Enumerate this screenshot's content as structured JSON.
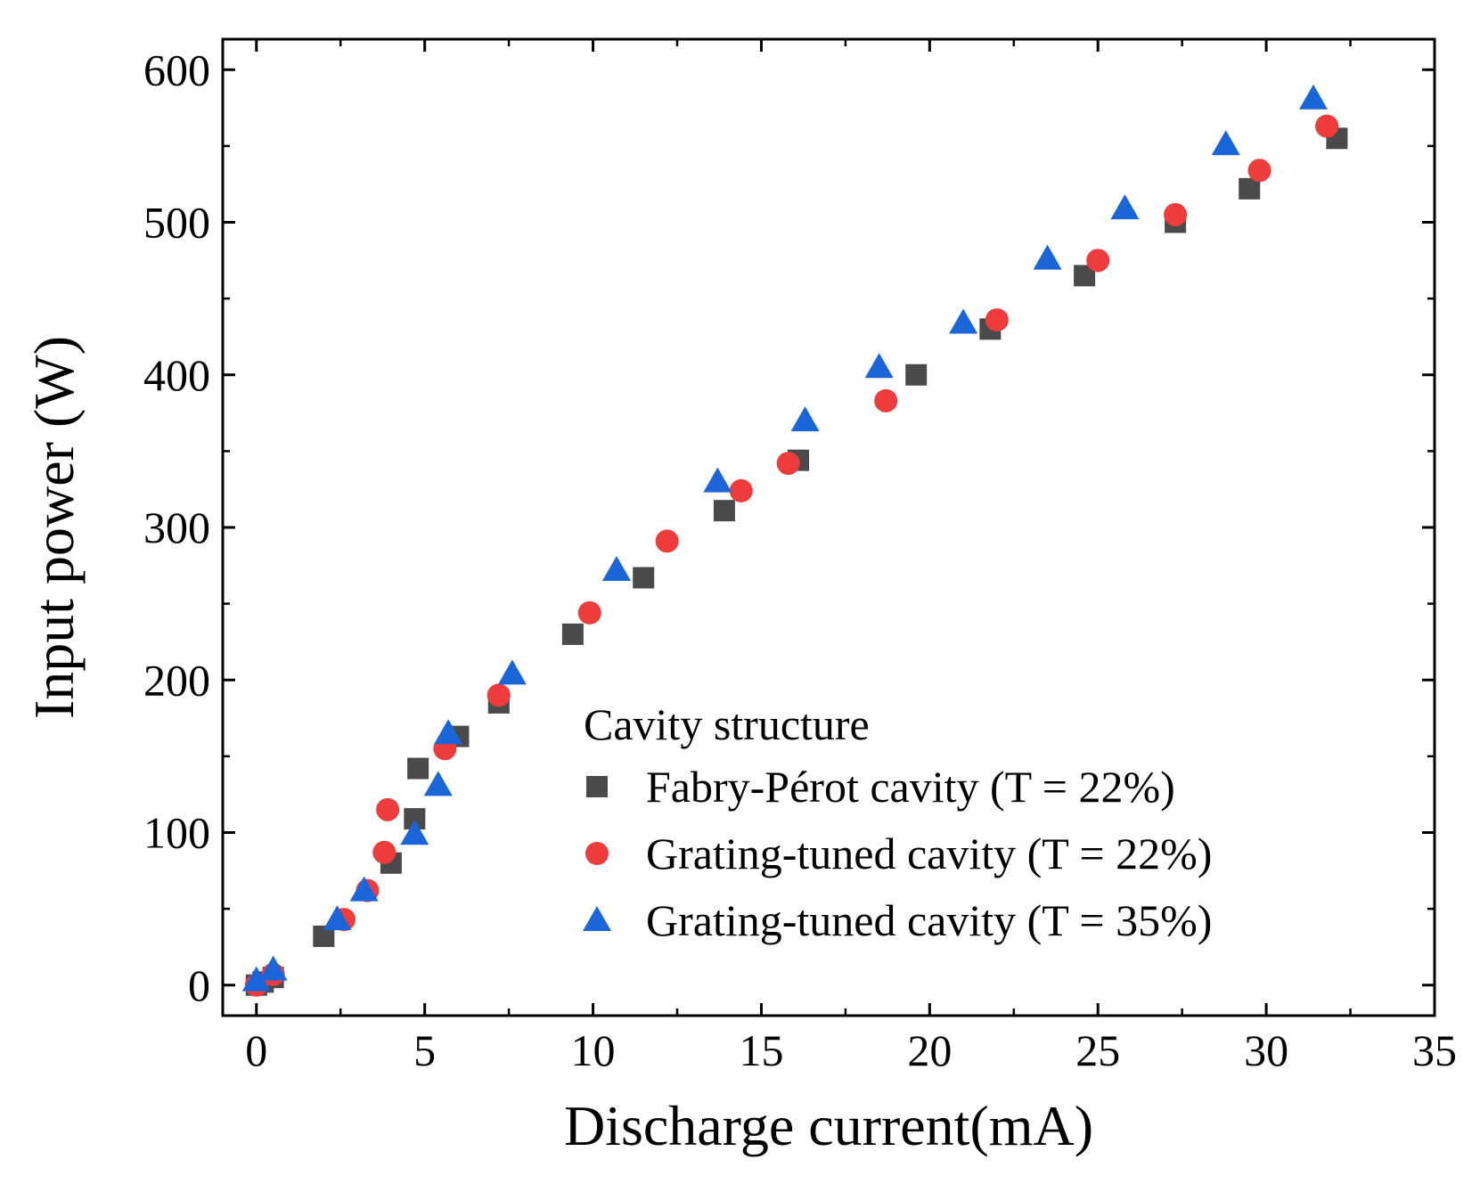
{
  "chart_data": {
    "type": "scatter",
    "xlabel": "Discharge current(mA)",
    "ylabel": "Input power (W)",
    "xlim": [
      -1,
      35
    ],
    "ylim": [
      -20,
      620
    ],
    "xticks": [
      0,
      5,
      10,
      15,
      20,
      25,
      30,
      35
    ],
    "yticks": [
      0,
      100,
      200,
      300,
      400,
      500,
      600
    ],
    "grid": false,
    "legend": {
      "title": "Cavity structure",
      "placement": "bottom-right"
    },
    "series": [
      {
        "name": "Fabry-Pérot  cavity (T = 22%)",
        "marker": "square",
        "color": "#4a4a4a",
        "points": [
          [
            0,
            0
          ],
          [
            0.2,
            2
          ],
          [
            0.5,
            5
          ],
          [
            2,
            32
          ],
          [
            4,
            80
          ],
          [
            4.7,
            109
          ],
          [
            4.8,
            142
          ],
          [
            6,
            163
          ],
          [
            7.2,
            185
          ],
          [
            9.4,
            230
          ],
          [
            11.5,
            267
          ],
          [
            13.9,
            311
          ],
          [
            16.1,
            344
          ],
          [
            19.6,
            400
          ],
          [
            21.8,
            430
          ],
          [
            24.6,
            465
          ],
          [
            27.3,
            500
          ],
          [
            29.5,
            522
          ],
          [
            32.1,
            555
          ]
        ]
      },
      {
        "name": "Grating-tuned cavity (T = 22%)",
        "marker": "circle",
        "color": "#ee3b3b",
        "points": [
          [
            0,
            0
          ],
          [
            0.5,
            7
          ],
          [
            2.6,
            43
          ],
          [
            3.3,
            62
          ],
          [
            3.8,
            87
          ],
          [
            3.9,
            115
          ],
          [
            5.6,
            155
          ],
          [
            7.2,
            190
          ],
          [
            9.9,
            244
          ],
          [
            12.2,
            291
          ],
          [
            14.4,
            324
          ],
          [
            15.8,
            342
          ],
          [
            18.7,
            383
          ],
          [
            22,
            436
          ],
          [
            25,
            475
          ],
          [
            27.3,
            505
          ],
          [
            29.8,
            534
          ],
          [
            31.8,
            563
          ]
        ]
      },
      {
        "name": "Grating-tuned cavity (T = 35%)",
        "marker": "triangle",
        "color": "#1a66d9",
        "points": [
          [
            0,
            3
          ],
          [
            0.5,
            10
          ],
          [
            2.4,
            43
          ],
          [
            3.2,
            62
          ],
          [
            4.7,
            99
          ],
          [
            5.4,
            131
          ],
          [
            5.7,
            165
          ],
          [
            7.6,
            204
          ],
          [
            10.7,
            272
          ],
          [
            13.7,
            330
          ],
          [
            16.3,
            370
          ],
          [
            18.5,
            405
          ],
          [
            21,
            434
          ],
          [
            23.5,
            476
          ],
          [
            25.8,
            509
          ],
          [
            28.8,
            551
          ],
          [
            31.4,
            581
          ]
        ]
      }
    ]
  }
}
